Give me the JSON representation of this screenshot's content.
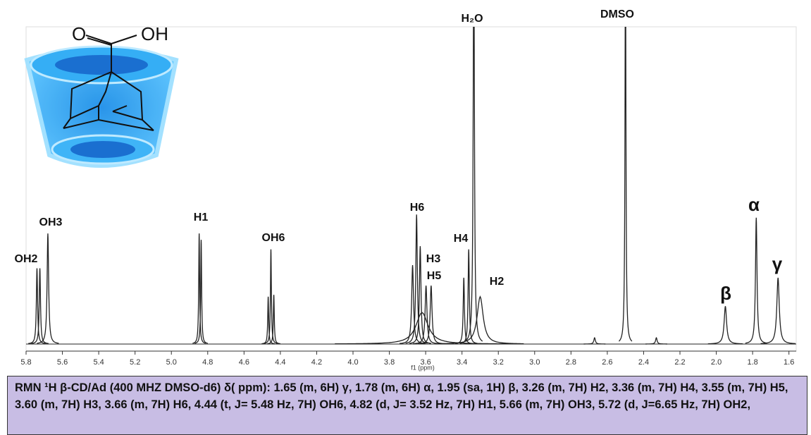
{
  "chart_data": {
    "type": "spectrum",
    "x_label": "f1 (ppm)",
    "xlim": [
      5.8,
      1.56
    ],
    "xticks": [
      {
        "value": 5.8,
        "label": "5.8"
      },
      5.6,
      5.4,
      5.2,
      {
        "value": 5,
        "label": "5.0"
      },
      4.8,
      4.6,
      4.4,
      4.2,
      {
        "value": 4,
        "label": "4.0"
      },
      3.8,
      3.6,
      3.4,
      3.2,
      {
        "value": 3,
        "label": "3.0"
      },
      2.8,
      2.6,
      2.4,
      2.2,
      {
        "value": 2,
        "label": "2.0"
      },
      1.8,
      1.6
    ],
    "ylim": [
      0,
      100
    ],
    "color": "#222222",
    "peaks": {
      "ppm": [
        5.74,
        5.724,
        5.68,
        4.847,
        4.836,
        4.467,
        4.452,
        4.436,
        3.672,
        3.65,
        3.63,
        3.62,
        3.598,
        3.57,
        3.39,
        3.363,
        3.335,
        3.3,
        2.67,
        2.5,
        2.33,
        1.95,
        1.78,
        1.66
      ],
      "height": [
        24,
        24,
        35,
        35,
        33,
        15,
        30,
        15.6,
        25,
        41,
        31,
        10,
        18.5,
        18.5,
        21,
        30,
        130,
        15,
        2,
        130,
        2,
        12,
        40,
        21
      ],
      "width": [
        0.004,
        0.004,
        0.005,
        0.003,
        0.003,
        0.003,
        0.003,
        0.003,
        0.006,
        0.005,
        0.005,
        0.04,
        0.006,
        0.006,
        0.004,
        0.004,
        0.004,
        0.02,
        0.005,
        0.003,
        0.005,
        0.008,
        0.005,
        0.008
      ]
    },
    "annotations": [
      "OH2",
      "OH3",
      "H1",
      "OH6",
      "H6",
      "H3",
      "H5",
      "H4",
      "H2",
      "H₂O",
      "DMSO",
      "β",
      "α",
      "γ"
    ],
    "illustration_labels": [
      "O",
      "OH"
    ],
    "caption": "RMN ¹H β-CD/Ad (400 MHZ DMSO-d6) δ( ppm): 1.65 (m, 6H) γ, 1.78 (m, 6H) α, 1.95 (sa, 1H) β, 3.26 (m, 7H) H2, 3.36 (m, 7H) H4, 3.55 (m, 7H) H5, 3.60 (m, 7H) H3, 3.66 (m, 7H) H6, 4.44 (t, J= 5.48 Hz, 7H) OH6, 4.82 (d, J= 3.52 Hz, 7H) H1, 5.66 (m, 7H) OH3, 5.72 (d, J=6.65 Hz, 7H) OH2,"
  }
}
